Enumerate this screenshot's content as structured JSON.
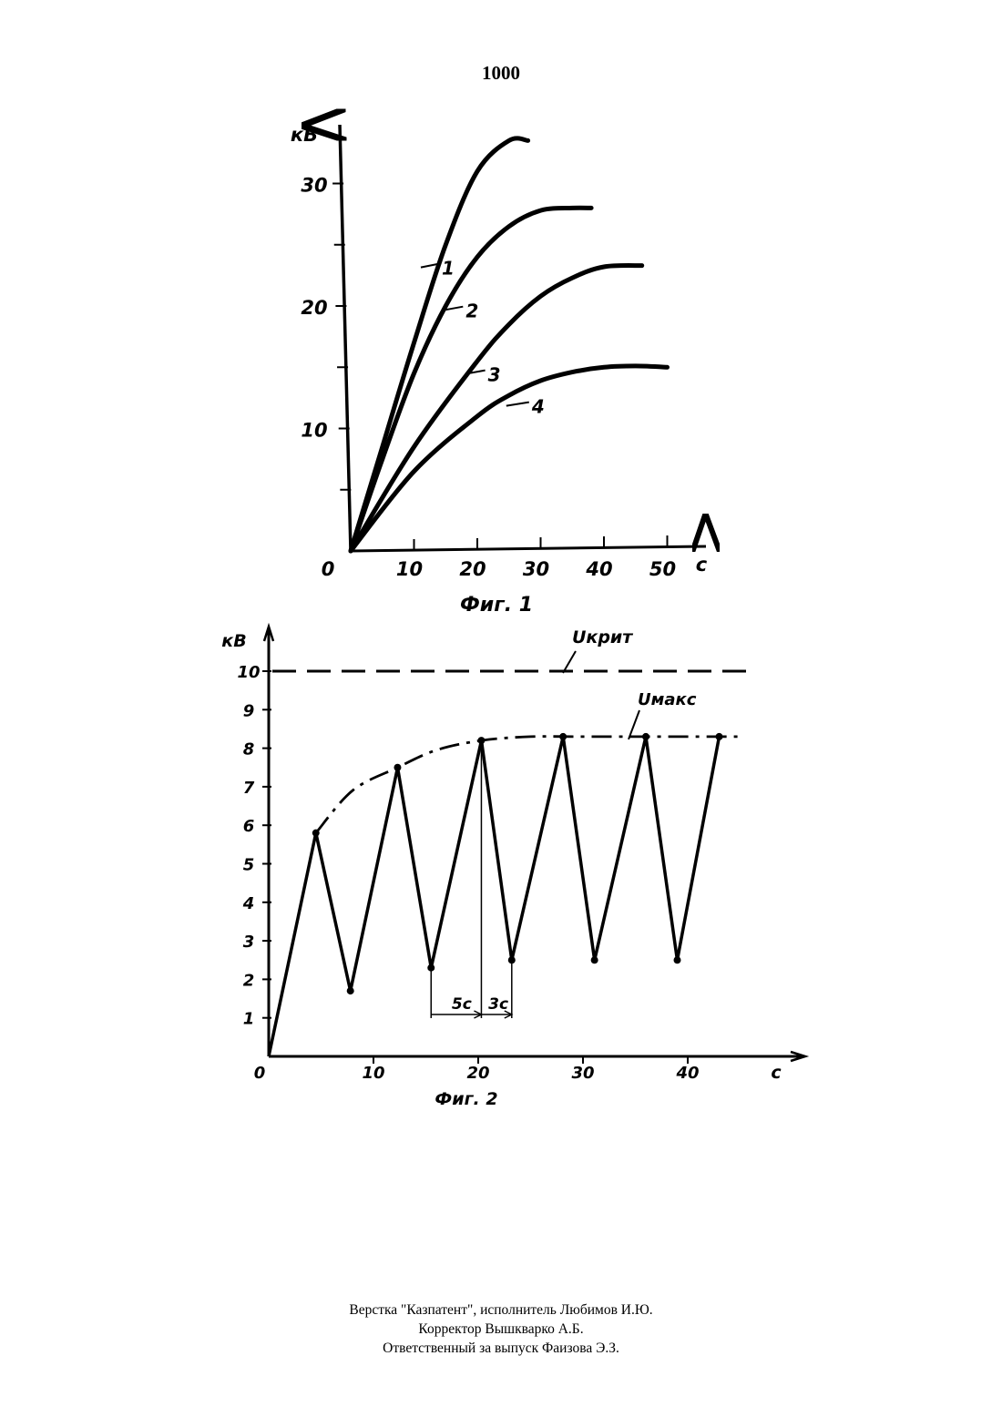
{
  "page_number": "1000",
  "footer": {
    "line1": "Верстка \"Казпатент\", исполнитель Любимов И.Ю.",
    "line2": "Корректор Вышкварко А.Б.",
    "line3": "Ответственный за выпуск Фаизова Э.З."
  },
  "chart_data": [
    {
      "type": "line",
      "title": "Фиг. 1",
      "ylabel": "кВ",
      "xlabel": "с",
      "xlim": [
        0,
        55
      ],
      "ylim": [
        0,
        35
      ],
      "x_ticks": [
        "0",
        "10",
        "20",
        "30",
        "40",
        "50"
      ],
      "y_ticks": [
        "10",
        "20",
        "30"
      ],
      "series": [
        {
          "name": "1",
          "x": [
            0,
            5,
            10,
            15,
            20,
            25,
            28
          ],
          "y": [
            0,
            8.5,
            17,
            25,
            31,
            33.5,
            33.5
          ]
        },
        {
          "name": "2",
          "x": [
            0,
            5,
            10,
            15,
            20,
            25,
            30,
            35,
            38
          ],
          "y": [
            0,
            7.5,
            14.5,
            20,
            24,
            26.5,
            27.8,
            28,
            28
          ]
        },
        {
          "name": "3",
          "x": [
            0,
            10,
            20,
            25,
            30,
            35,
            40,
            46
          ],
          "y": [
            0,
            8.5,
            15.5,
            18.5,
            20.8,
            22.3,
            23.2,
            23.3
          ]
        },
        {
          "name": "4",
          "x": [
            0,
            10,
            20,
            25,
            30,
            35,
            40,
            45,
            50
          ],
          "y": [
            0,
            6.5,
            11,
            12.7,
            13.9,
            14.6,
            15,
            15.1,
            15
          ]
        }
      ]
    },
    {
      "type": "line",
      "title": "Фиг. 2",
      "ylabel": "кВ",
      "xlabel": "с",
      "xlim": [
        0,
        50
      ],
      "ylim": [
        0,
        10
      ],
      "x_ticks": [
        "0",
        "10",
        "20",
        "30",
        "40"
      ],
      "y_ticks": [
        "1",
        "2",
        "3",
        "4",
        "5",
        "6",
        "7",
        "8",
        "9",
        "10"
      ],
      "series": [
        {
          "name": "",
          "x": [
            0,
            4.5,
            7.8,
            12.3,
            15.5,
            20.3,
            23.2,
            28.1,
            31.1,
            36,
            39,
            43
          ],
          "y": [
            0,
            5.8,
            1.7,
            7.5,
            2.3,
            8.2,
            2.5,
            8.3,
            2.5,
            8.3,
            2.5,
            8.3
          ]
        }
      ],
      "u_krit": {
        "label": "Uкрит",
        "value": 10
      },
      "u_maks": {
        "label": "Uмакс",
        "x": [
          4.5,
          8,
          12.3,
          16,
          20.3,
          25,
          30,
          45
        ],
        "y": [
          5.8,
          6.9,
          7.5,
          7.95,
          8.2,
          8.3,
          8.3,
          8.3
        ]
      },
      "annotations": [
        {
          "text": "5с",
          "x_from": 15.5,
          "x_to": 20.3
        },
        {
          "text": "3с",
          "x_from": 20.3,
          "x_to": 23.2
        }
      ]
    }
  ]
}
